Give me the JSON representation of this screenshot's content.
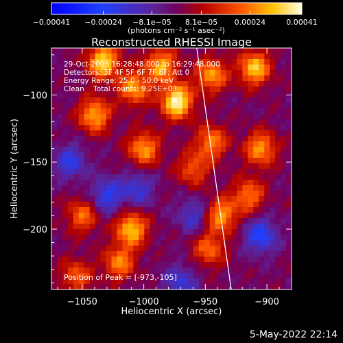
{
  "chart_data": {
    "type": "heatmap",
    "title": "Reconstructed RHESSI Image",
    "xlabel": "Heliocentric X (arcsec)",
    "ylabel": "Heliocentric Y (arcsec)",
    "xlim": [
      -1075,
      -880
    ],
    "ylim": [
      -245,
      -65
    ],
    "xticks": [
      -1050,
      -1000,
      -950,
      -900
    ],
    "xtick_labels": [
      "−1050",
      "−1000",
      "−950",
      "−900"
    ],
    "yticks": [
      -100,
      -150,
      -200
    ],
    "ytick_labels": [
      "−100",
      "−150",
      "−200"
    ],
    "colorbar": {
      "range": [
        -0.00041,
        0.00041
      ],
      "ticks": [
        -0.00041,
        -0.00024,
        -8.1e-05,
        8.1e-05,
        0.00024,
        0.00041
      ],
      "tick_labels": [
        "−0.00041",
        "−0.00024",
        "−8.1e−05",
        "8.1e−05",
        "0.00024",
        "0.00041"
      ],
      "unit_label": "(photons cm⁻² s⁻¹ asec⁻²)"
    },
    "annotations": [
      "29-Oct-2003 16:28:48.000 to 16:29:48.000",
      "Detectors: 3F 4F 5F 6F 7F 8F; Att 0",
      "Energy Range: 25.0 - 50.0 keV",
      "Clean    Total counts: 9.25E+03"
    ],
    "peak_label": "Position of Peak = [-973,-105]",
    "peak": {
      "x": -973,
      "y": -105
    },
    "limb_line": [
      {
        "x": -957,
        "y": -65
      },
      {
        "x": -929,
        "y": -245
      }
    ],
    "bright_sources": [
      {
        "x": -1033,
        "y": -75,
        "value": 0.00036
      },
      {
        "x": -1040,
        "y": -115,
        "value": 0.0003
      },
      {
        "x": -1008,
        "y": -95,
        "value": 0.00028
      },
      {
        "x": -973,
        "y": -105,
        "value": 0.00041
      },
      {
        "x": -986,
        "y": -78,
        "value": 0.0003
      },
      {
        "x": -945,
        "y": -85,
        "value": 0.00028
      },
      {
        "x": -910,
        "y": -80,
        "value": 0.00033
      },
      {
        "x": -1000,
        "y": -140,
        "value": 0.00028
      },
      {
        "x": -945,
        "y": -135,
        "value": 0.00025
      },
      {
        "x": -905,
        "y": -140,
        "value": 0.00028
      },
      {
        "x": -915,
        "y": -175,
        "value": 0.00024
      },
      {
        "x": -1010,
        "y": -200,
        "value": 0.00033
      },
      {
        "x": -1050,
        "y": -190,
        "value": 0.00022
      },
      {
        "x": -1020,
        "y": -225,
        "value": 0.00025
      },
      {
        "x": -947,
        "y": -215,
        "value": 0.00022
      },
      {
        "x": -937,
        "y": -190,
        "value": 0.00028
      },
      {
        "x": -1055,
        "y": -235,
        "value": 0.0002
      },
      {
        "x": -960,
        "y": -155,
        "value": 0.0002
      }
    ],
    "negative_regions": [
      {
        "x": -1060,
        "y": -150,
        "value": -0.0002
      },
      {
        "x": -1030,
        "y": -175,
        "value": -0.00022
      },
      {
        "x": -1005,
        "y": -170,
        "value": -0.00018
      },
      {
        "x": -905,
        "y": -205,
        "value": -0.00025
      },
      {
        "x": -960,
        "y": -190,
        "value": -0.00016
      },
      {
        "x": -970,
        "y": -240,
        "value": -0.00018
      }
    ]
  },
  "footer": {
    "timestamp": "5-May-2022 22:14"
  }
}
